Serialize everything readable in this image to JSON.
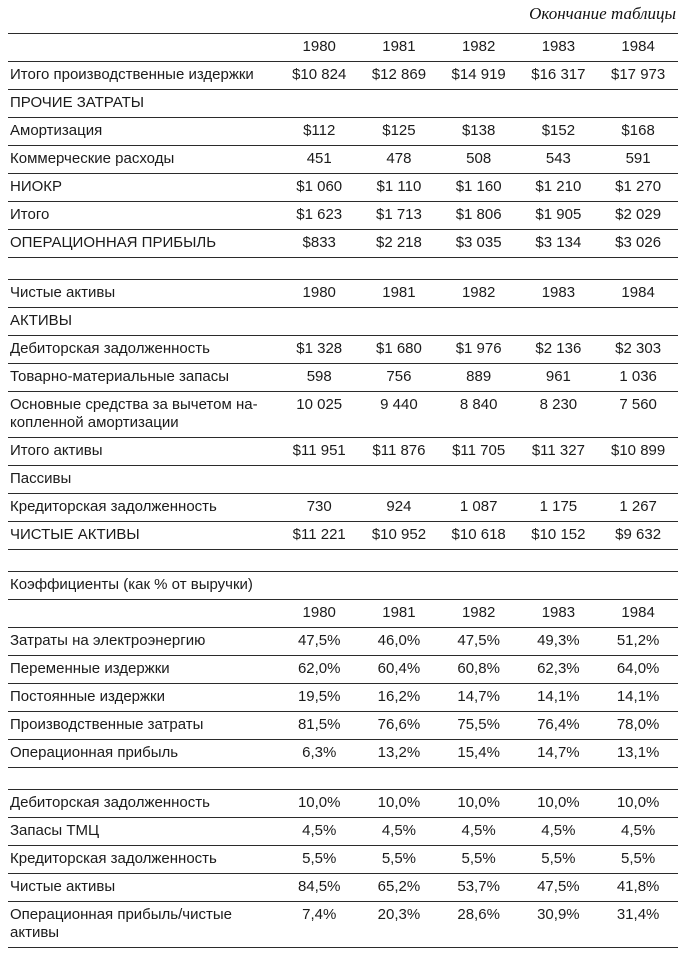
{
  "page": {
    "continuation_note": "Окончание таблицы"
  },
  "tables": [
    {
      "header": {
        "label": "",
        "cols": [
          "1980",
          "1981",
          "1982",
          "1983",
          "1984"
        ]
      },
      "rows": [
        {
          "label": "Итого производственные издержки",
          "values": [
            "$10 824",
            "$12 869",
            "$14 919",
            "$16 317",
            "$17 973"
          ]
        },
        {
          "label": "ПРОЧИЕ ЗАТРАТЫ",
          "section": true,
          "values": [
            "",
            "",
            "",
            "",
            ""
          ]
        },
        {
          "label": "Амортизация",
          "values": [
            "$112",
            "$125",
            "$138",
            "$152",
            "$168"
          ]
        },
        {
          "label": "Коммерческие расходы",
          "values": [
            "451",
            "478",
            "508",
            "543",
            "591"
          ]
        },
        {
          "label": "НИОКР",
          "values": [
            "$1 060",
            "$1 110",
            "$1 160",
            "$1 210",
            "$1 270"
          ]
        },
        {
          "label": "Итого",
          "values": [
            "$1 623",
            "$1 713",
            "$1 806",
            "$1 905",
            "$2 029"
          ]
        },
        {
          "label": "ОПЕРАЦИОННАЯ ПРИБЫЛЬ",
          "values": [
            "$833",
            "$2 218",
            "$3 035",
            "$3 134",
            "$3 026"
          ]
        }
      ]
    },
    {
      "header": {
        "label": "Чистые активы",
        "cols": [
          "1980",
          "1981",
          "1982",
          "1983",
          "1984"
        ]
      },
      "rows": [
        {
          "label": "АКТИВЫ",
          "section": true,
          "values": [
            "",
            "",
            "",
            "",
            ""
          ]
        },
        {
          "label": "Дебиторская задолженность",
          "values": [
            "$1 328",
            "$1 680",
            "$1 976",
            "$2 136",
            "$2 303"
          ]
        },
        {
          "label": "Товарно-материальные запасы",
          "values": [
            "598",
            "756",
            "889",
            "961",
            "1 036"
          ]
        },
        {
          "label": "Основные средства за вычетом на-\nкопленной амортизации",
          "values": [
            "10 025",
            "9 440",
            "8 840",
            "8 230",
            "7 560"
          ]
        },
        {
          "label": "Итого активы",
          "values": [
            "$11 951",
            "$11 876",
            "$11 705",
            "$11 327",
            "$10 899"
          ]
        },
        {
          "label": "Пассивы",
          "section": true,
          "values": [
            "",
            "",
            "",
            "",
            ""
          ]
        },
        {
          "label": "Кредиторская задолженность",
          "values": [
            "730",
            "924",
            "1 087",
            "1 175",
            "1 267"
          ]
        },
        {
          "label": "ЧИСТЫЕ АКТИВЫ",
          "values": [
            "$11 221",
            "$10 952",
            "$10 618",
            "$10 152",
            "$9 632"
          ]
        }
      ]
    },
    {
      "caption": "Коэффициенты (как % от выручки)",
      "header": {
        "label": "",
        "cols": [
          "1980",
          "1981",
          "1982",
          "1983",
          "1984"
        ]
      },
      "rows": [
        {
          "label": "Затраты на электроэнергию",
          "values": [
            "47,5%",
            "46,0%",
            "47,5%",
            "49,3%",
            "51,2%"
          ]
        },
        {
          "label": "Переменные издержки",
          "values": [
            "62,0%",
            "60,4%",
            "60,8%",
            "62,3%",
            "64,0%"
          ]
        },
        {
          "label": "Постоянные издержки",
          "values": [
            "19,5%",
            "16,2%",
            "14,7%",
            "14,1%",
            "14,1%"
          ]
        },
        {
          "label": "Производственные затраты",
          "values": [
            "81,5%",
            "76,6%",
            "75,5%",
            "76,4%",
            "78,0%"
          ]
        },
        {
          "label": "Операционная прибыль",
          "values": [
            "6,3%",
            "13,2%",
            "15,4%",
            "14,7%",
            "13,1%"
          ]
        }
      ]
    },
    {
      "rows": [
        {
          "label": "Дебиторская задолженность",
          "values": [
            "10,0%",
            "10,0%",
            "10,0%",
            "10,0%",
            "10,0%"
          ]
        },
        {
          "label": "Запасы ТМЦ",
          "values": [
            "4,5%",
            "4,5%",
            "4,5%",
            "4,5%",
            "4,5%"
          ]
        },
        {
          "label": "Кредиторская задолженность",
          "values": [
            "5,5%",
            "5,5%",
            "5,5%",
            "5,5%",
            "5,5%"
          ]
        },
        {
          "label": "Чистые активы",
          "values": [
            "84,5%",
            "65,2%",
            "53,7%",
            "47,5%",
            "41,8%"
          ]
        },
        {
          "label": "Операционная прибыль/чистые\nактивы",
          "values": [
            "7,4%",
            "20,3%",
            "28,6%",
            "30,9%",
            "31,4%"
          ]
        }
      ]
    }
  ],
  "colors": {
    "text": "#1b1b1b",
    "rule": "#2b2b2b",
    "background": "#ffffff"
  }
}
